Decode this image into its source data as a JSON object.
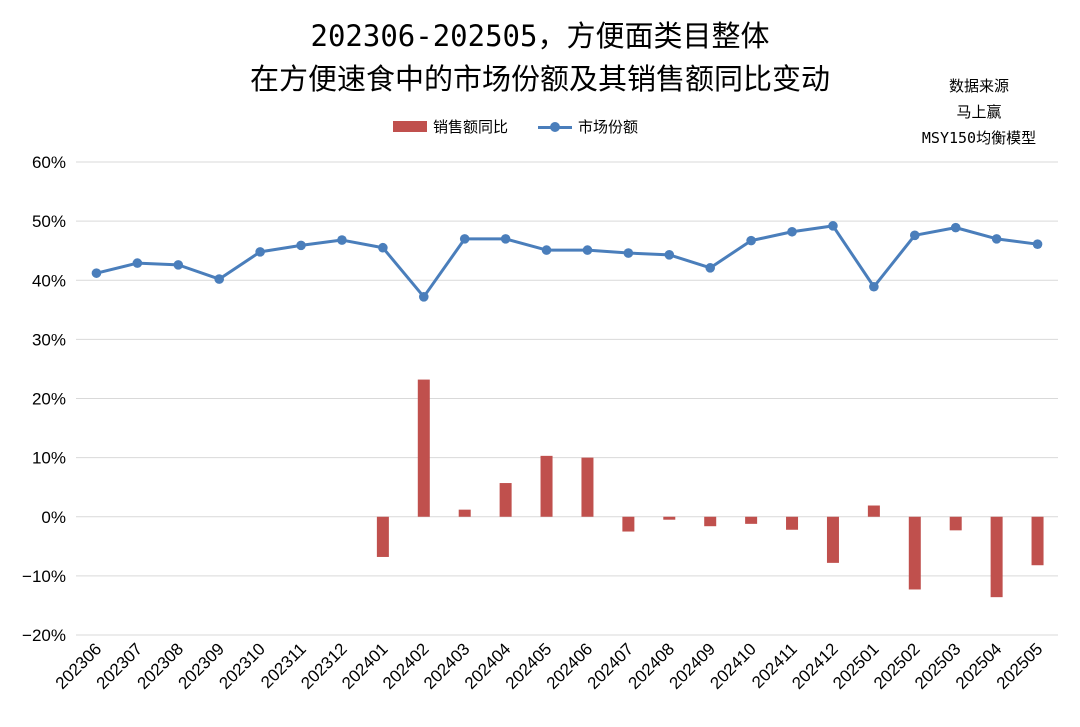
{
  "chart_data": {
    "type": "bar+line",
    "title_line1": "202306-202505，方便面类目整体",
    "title_line2": "在方便速食中的市场份额及其销售额同比变动",
    "source": [
      "数据来源",
      "马上赢",
      "MSY150均衡模型"
    ],
    "legend": [
      "销售额同比",
      "市场份额"
    ],
    "categories": [
      "202306",
      "202307",
      "202308",
      "202309",
      "202310",
      "202311",
      "202312",
      "202401",
      "202402",
      "202403",
      "202404",
      "202405",
      "202406",
      "202407",
      "202408",
      "202409",
      "202410",
      "202411",
      "202412",
      "202501",
      "202502",
      "202503",
      "202504",
      "202505"
    ],
    "series": [
      {
        "name": "销售额同比",
        "type": "bar",
        "color": "#c0504d",
        "values": [
          null,
          null,
          null,
          null,
          null,
          null,
          null,
          -6.8,
          23.2,
          1.2,
          5.7,
          10.3,
          10.0,
          -2.5,
          -0.5,
          -1.6,
          -1.2,
          -2.2,
          -7.8,
          1.9,
          -12.3,
          -2.3,
          -13.6,
          -8.2
        ]
      },
      {
        "name": "市场份额",
        "type": "line",
        "color": "#4a7ebb",
        "values": [
          41.2,
          42.9,
          42.6,
          40.2,
          44.8,
          45.9,
          46.8,
          45.5,
          37.2,
          47.0,
          47.0,
          45.1,
          45.1,
          44.6,
          44.3,
          42.1,
          46.7,
          48.2,
          49.2,
          38.9,
          47.6,
          48.9,
          47.0,
          46.1
        ]
      }
    ],
    "y_ticks": [
      "60%",
      "50%",
      "40%",
      "30%",
      "20%",
      "10%",
      "0%",
      "−10%",
      "−20%"
    ],
    "ylim": [
      -20,
      60
    ],
    "grid": true,
    "legend_position": "top-center"
  }
}
